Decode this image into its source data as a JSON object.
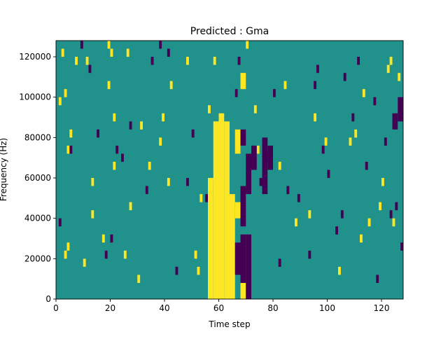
{
  "chart_data": {
    "type": "heatmap",
    "title": "Predicted : Gma",
    "xlabel": "Time step",
    "ylabel": "Frequency (Hz)",
    "xlim": [
      0,
      128
    ],
    "ylim": [
      0,
      128000
    ],
    "x_ticks": [
      0,
      20,
      40,
      60,
      80,
      100,
      120
    ],
    "x_tick_labels": [
      "0",
      "20",
      "40",
      "60",
      "80",
      "100",
      "120"
    ],
    "y_ticks": [
      0,
      20000,
      40000,
      60000,
      80000,
      100000,
      120000
    ],
    "y_tick_labels": [
      "0",
      "20000",
      "40000",
      "60000",
      "80000",
      "100000",
      "120000"
    ],
    "grid": false,
    "colormap": "viridis",
    "colors": {
      "background": "#21918c",
      "high": "#fde725",
      "low": "#440154"
    },
    "time_steps": 128,
    "frequency_bins": 32,
    "bin_height_hz": 4000,
    "background_value": 0,
    "high_cells": [
      [
        1,
        24
      ],
      [
        2,
        30
      ],
      [
        3,
        25
      ],
      [
        3,
        5
      ],
      [
        4,
        6
      ],
      [
        4,
        18
      ],
      [
        5,
        20
      ],
      [
        7,
        29
      ],
      [
        10,
        4
      ],
      [
        11,
        29
      ],
      [
        13,
        14
      ],
      [
        13,
        10
      ],
      [
        17,
        7
      ],
      [
        19,
        26
      ],
      [
        19,
        31
      ],
      [
        20,
        30
      ],
      [
        21,
        22
      ],
      [
        21,
        16
      ],
      [
        25,
        5
      ],
      [
        26,
        30
      ],
      [
        27,
        11
      ],
      [
        30,
        2
      ],
      [
        31,
        21
      ],
      [
        34,
        16
      ],
      [
        38,
        19
      ],
      [
        39,
        22
      ],
      [
        41,
        14
      ],
      [
        42,
        26
      ],
      [
        48,
        29
      ],
      [
        51,
        5
      ],
      [
        52,
        3
      ],
      [
        53,
        12
      ],
      [
        56,
        23
      ],
      [
        58,
        29
      ],
      [
        64,
        7
      ],
      [
        70,
        31
      ],
      [
        73,
        23
      ],
      [
        74,
        18
      ],
      [
        82,
        16
      ],
      [
        84,
        26
      ],
      [
        88,
        9
      ],
      [
        93,
        10
      ],
      [
        95,
        22
      ],
      [
        99,
        19
      ],
      [
        104,
        3
      ],
      [
        108,
        19
      ],
      [
        110,
        20
      ],
      [
        112,
        7
      ],
      [
        113,
        25
      ],
      [
        115,
        9
      ],
      [
        119,
        11
      ],
      [
        120,
        14
      ],
      [
        122,
        28
      ],
      [
        123,
        29
      ],
      [
        124,
        9
      ],
      [
        126,
        27
      ]
    ],
    "low_cells": [
      [
        1,
        9
      ],
      [
        5,
        18
      ],
      [
        9,
        31
      ],
      [
        12,
        28
      ],
      [
        15,
        20
      ],
      [
        18,
        5
      ],
      [
        20,
        7
      ],
      [
        22,
        18
      ],
      [
        24,
        17
      ],
      [
        27,
        21
      ],
      [
        33,
        13
      ],
      [
        35,
        29
      ],
      [
        38,
        31
      ],
      [
        41,
        30
      ],
      [
        44,
        3
      ],
      [
        48,
        14
      ],
      [
        50,
        20
      ],
      [
        55,
        12
      ],
      [
        57,
        13
      ],
      [
        59,
        10
      ],
      [
        61,
        6
      ],
      [
        63,
        21
      ],
      [
        66,
        25
      ],
      [
        67,
        29
      ],
      [
        75,
        14
      ],
      [
        78,
        17
      ],
      [
        80,
        25
      ],
      [
        82,
        4
      ],
      [
        85,
        13
      ],
      [
        89,
        12
      ],
      [
        93,
        5
      ],
      [
        95,
        26
      ],
      [
        96,
        28
      ],
      [
        98,
        18
      ],
      [
        100,
        15
      ],
      [
        103,
        8
      ],
      [
        105,
        10
      ],
      [
        106,
        27
      ],
      [
        109,
        22
      ],
      [
        111,
        29
      ],
      [
        114,
        16
      ],
      [
        117,
        24
      ],
      [
        118,
        2
      ],
      [
        121,
        19
      ],
      [
        123,
        10
      ],
      [
        125,
        11
      ],
      [
        127,
        6
      ]
    ],
    "high_blocks": [
      [
        56,
        58,
        0,
        14
      ],
      [
        58,
        60,
        0,
        21
      ],
      [
        60,
        62,
        0,
        22
      ],
      [
        62,
        64,
        0,
        21
      ],
      [
        64,
        66,
        0,
        12
      ],
      [
        66,
        68,
        10,
        11
      ],
      [
        66,
        68,
        18,
        20
      ],
      [
        68,
        70,
        0,
        1
      ],
      [
        68,
        70,
        26,
        27
      ]
    ],
    "low_blocks": [
      [
        66,
        68,
        3,
        6
      ],
      [
        68,
        70,
        2,
        7
      ],
      [
        68,
        70,
        9,
        13
      ],
      [
        68,
        70,
        19,
        20
      ],
      [
        70,
        72,
        0,
        7
      ],
      [
        70,
        72,
        13,
        17
      ],
      [
        72,
        74,
        16,
        18
      ],
      [
        76,
        78,
        13,
        19
      ],
      [
        78,
        80,
        16,
        18
      ],
      [
        124,
        126,
        21,
        22
      ],
      [
        126,
        128,
        22,
        24
      ]
    ]
  }
}
